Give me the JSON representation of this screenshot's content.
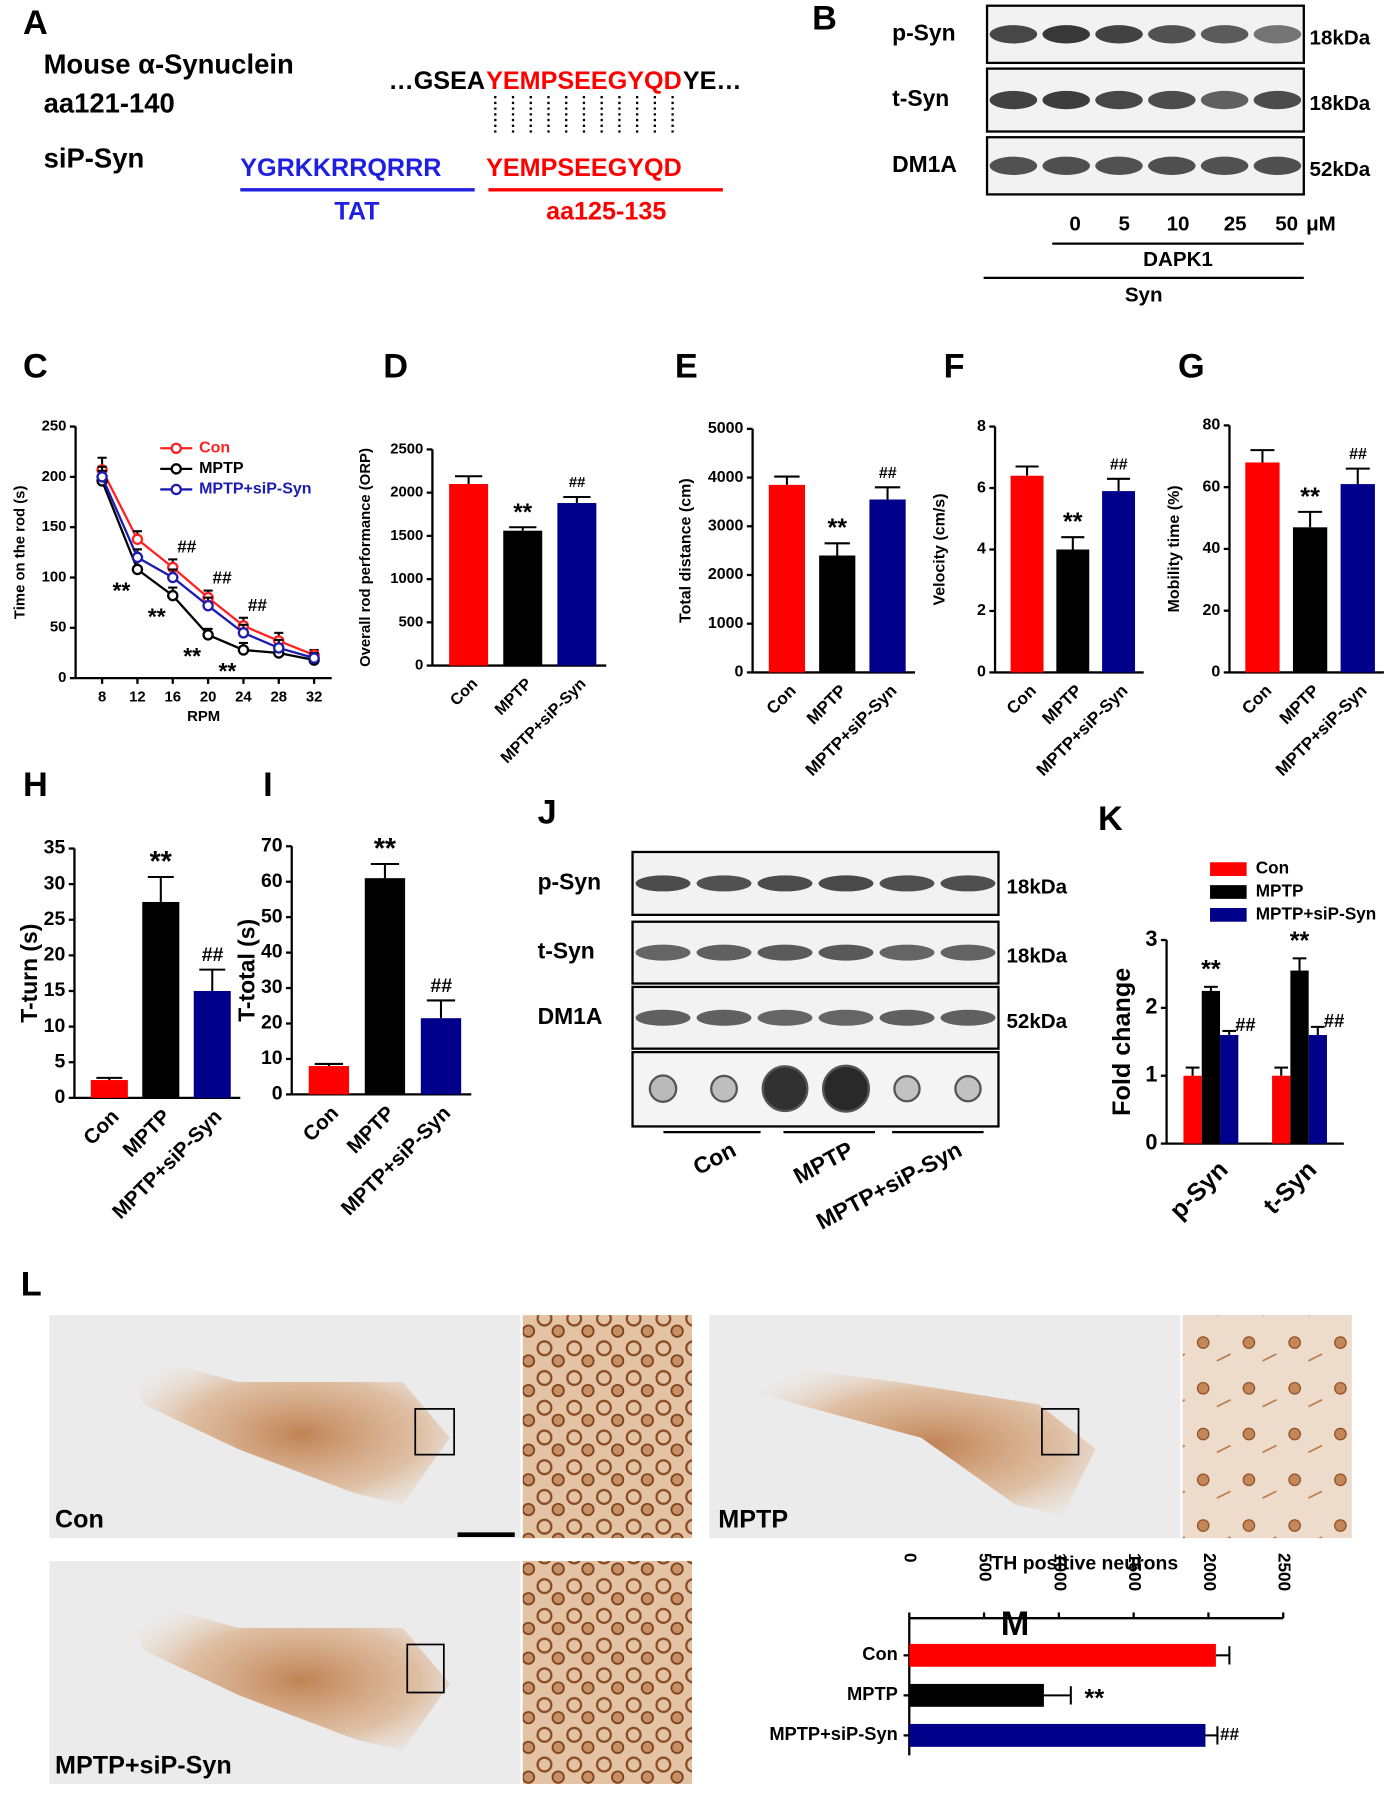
{
  "panel_a": {
    "panel": "A",
    "line1": "Mouse α-Synuclein",
    "line2": "aa121-140",
    "seq_prefix": "…GSEA",
    "seq_core": "YEMPSEEGYQD",
    "seq_suffix": "YE…",
    "peptide_name": "siP-Syn",
    "tat_seq": "YGRKKRRQRRR",
    "tat_label": "TAT",
    "core_seq": "YEMPSEEGYQD",
    "core_label": "aa125-135"
  },
  "panel_b": {
    "panel": "B",
    "rows": [
      "p-Syn",
      "t-Syn",
      "DM1A"
    ],
    "sizes": [
      "18kDa",
      "18kDa",
      "52kDa"
    ],
    "doses": [
      "0",
      "5",
      "10",
      "25",
      "50"
    ],
    "unit": "μM",
    "treatment": "DAPK1",
    "substrate": "Syn"
  },
  "panel_j": {
    "panel": "J",
    "rows": [
      "p-Syn",
      "t-Syn",
      "DM1A"
    ],
    "sizes": [
      "18kDa",
      "18kDa",
      "52kDa"
    ],
    "groups": [
      "Con",
      "MPTP",
      "MPTP+siP-Syn"
    ]
  },
  "panel_l": {
    "panel": "L",
    "labels": [
      "Con",
      "MPTP",
      "MPTP+siP-Syn"
    ]
  },
  "chart_data": [
    {
      "type": "line",
      "panel": "C",
      "ylabel": "Time on the rod (s)",
      "xlabel": "RPM",
      "x": [
        8,
        12,
        16,
        20,
        24,
        28,
        32
      ],
      "xlim": [
        5,
        34
      ],
      "xticks": [
        8,
        12,
        16,
        20,
        24,
        28,
        32
      ],
      "ylim": [
        0,
        250
      ],
      "yticks": [
        0,
        50,
        100,
        150,
        200,
        250
      ],
      "series": [
        {
          "name": "Con",
          "color": "#ff2020",
          "values": [
            207,
            138,
            110,
            80,
            52,
            37,
            23
          ],
          "errors": [
            12,
            8,
            8,
            7,
            8,
            8,
            5
          ]
        },
        {
          "name": "MPTP",
          "color": "#000000",
          "values": [
            196,
            108,
            82,
            43,
            28,
            25,
            18
          ],
          "errors": [
            10,
            9,
            8,
            6,
            7,
            8,
            4
          ],
          "annotations": [
            {
              "x": 12,
              "text": "**"
            },
            {
              "x": 16,
              "text": "**"
            },
            {
              "x": 20,
              "text": "**"
            },
            {
              "x": 24,
              "text": "**"
            }
          ]
        },
        {
          "name": "MPTP+siP-Syn",
          "color": "#1c1cb0",
          "values": [
            200,
            120,
            100,
            72,
            45,
            30,
            20
          ],
          "errors": [
            10,
            8,
            8,
            8,
            8,
            8,
            5
          ],
          "annotations": [
            {
              "x": 16,
              "text": "##"
            },
            {
              "x": 20,
              "text": "##"
            },
            {
              "x": 24,
              "text": "##"
            }
          ]
        }
      ]
    },
    {
      "type": "bar",
      "panel": "D",
      "ylabel": "Overall rod performance (ORP)",
      "categories": [
        "Con",
        "MPTP",
        "MPTP+siP-Syn"
      ],
      "values": [
        2100,
        1560,
        1880
      ],
      "errors": [
        90,
        40,
        70
      ],
      "colors": [
        "#ff0000",
        "#000000",
        "#00008b"
      ],
      "ylim": [
        0,
        2500
      ],
      "yticks": [
        0,
        500,
        1000,
        1500,
        2000,
        2500
      ],
      "annotations": [
        {
          "index": 1,
          "text": "**"
        },
        {
          "index": 2,
          "text": "##"
        }
      ]
    },
    {
      "type": "bar",
      "panel": "E",
      "ylabel": "Total distance (cm)",
      "categories": [
        "Con",
        "MPTP",
        "MPTP+siP-Syn"
      ],
      "values": [
        3850,
        2400,
        3550
      ],
      "errors": [
        170,
        250,
        250
      ],
      "colors": [
        "#ff0000",
        "#000000",
        "#00008b"
      ],
      "ylim": [
        0,
        5000
      ],
      "yticks": [
        0,
        1000,
        2000,
        3000,
        4000,
        5000
      ],
      "annotations": [
        {
          "index": 1,
          "text": "**"
        },
        {
          "index": 2,
          "text": "##"
        }
      ]
    },
    {
      "type": "bar",
      "panel": "F",
      "ylabel": "Velocity (cm/s)",
      "categories": [
        "Con",
        "MPTP",
        "MPTP+siP-Syn"
      ],
      "values": [
        6.4,
        4.0,
        5.9
      ],
      "errors": [
        0.3,
        0.4,
        0.4
      ],
      "colors": [
        "#ff0000",
        "#000000",
        "#00008b"
      ],
      "ylim": [
        0,
        8
      ],
      "yticks": [
        0,
        2,
        4,
        6,
        8
      ],
      "annotations": [
        {
          "index": 1,
          "text": "**"
        },
        {
          "index": 2,
          "text": "##"
        }
      ]
    },
    {
      "type": "bar",
      "panel": "G",
      "ylabel": "Mobility time (%)",
      "categories": [
        "Con",
        "MPTP",
        "MPTP+siP-Syn"
      ],
      "values": [
        68,
        47,
        61
      ],
      "errors": [
        4,
        5,
        5
      ],
      "colors": [
        "#ff0000",
        "#000000",
        "#00008b"
      ],
      "ylim": [
        0,
        80
      ],
      "yticks": [
        0,
        20,
        40,
        60,
        80
      ],
      "annotations": [
        {
          "index": 1,
          "text": "**"
        },
        {
          "index": 2,
          "text": "##"
        }
      ]
    },
    {
      "type": "bar",
      "panel": "H",
      "ylabel": "T-turn (s)",
      "categories": [
        "Con",
        "MPTP",
        "MPTP+siP-Syn"
      ],
      "values": [
        2.5,
        27.5,
        15
      ],
      "errors": [
        0.3,
        3.5,
        3
      ],
      "colors": [
        "#ff0000",
        "#000000",
        "#00008b"
      ],
      "ylim": [
        0,
        35
      ],
      "yticks": [
        0,
        5,
        10,
        15,
        20,
        25,
        30,
        35
      ],
      "annotations": [
        {
          "index": 1,
          "text": "**"
        },
        {
          "index": 2,
          "text": "##"
        }
      ]
    },
    {
      "type": "bar",
      "panel": "I",
      "ylabel": "T-total (s)",
      "categories": [
        "Con",
        "MPTP",
        "MPTP+siP-Syn"
      ],
      "values": [
        8,
        61,
        21.5
      ],
      "errors": [
        0.6,
        4,
        5
      ],
      "colors": [
        "#ff0000",
        "#000000",
        "#00008b"
      ],
      "ylim": [
        0,
        70
      ],
      "yticks": [
        0,
        10,
        20,
        30,
        40,
        50,
        60,
        70
      ],
      "annotations": [
        {
          "index": 1,
          "text": "**"
        },
        {
          "index": 2,
          "text": "##"
        }
      ]
    },
    {
      "type": "grouped",
      "panel": "K",
      "ylabel": "Fold change",
      "categories": [
        "p-Syn",
        "t-Syn"
      ],
      "ylim": [
        0,
        3
      ],
      "yticks": [
        0,
        1,
        2,
        3
      ],
      "series": [
        {
          "name": "Con",
          "color": "#ff0000",
          "values": [
            1,
            1
          ],
          "errors": [
            0.12,
            0.12
          ]
        },
        {
          "name": "MPTP",
          "color": "#000000",
          "values": [
            2.25,
            2.55
          ],
          "errors": [
            0.06,
            0.18
          ],
          "annotations": [
            {
              "index": 0,
              "text": "**"
            },
            {
              "index": 1,
              "text": "**"
            }
          ]
        },
        {
          "name": "MPTP+siP-Syn",
          "color": "#00008b",
          "values": [
            1.6,
            1.6
          ],
          "errors": [
            0.06,
            0.12
          ],
          "annotations": [
            {
              "index": 0,
              "text": "##"
            },
            {
              "index": 1,
              "text": "##"
            }
          ]
        }
      ]
    },
    {
      "type": "barh",
      "panel": "M",
      "title": "TH positive neurons",
      "categories": [
        "Con",
        "MPTP",
        "MPTP+siP-Syn"
      ],
      "values": [
        2050,
        900,
        1980
      ],
      "errors": [
        90,
        180,
        80
      ],
      "colors": [
        "#ff0000",
        "#000000",
        "#00008b"
      ],
      "xlim": [
        0,
        2500
      ],
      "xticks": [
        0,
        500,
        1000,
        1500,
        2000,
        2500
      ],
      "annotations": [
        {
          "index": 1,
          "text": "**"
        },
        {
          "index": 2,
          "text": "##"
        }
      ]
    }
  ]
}
